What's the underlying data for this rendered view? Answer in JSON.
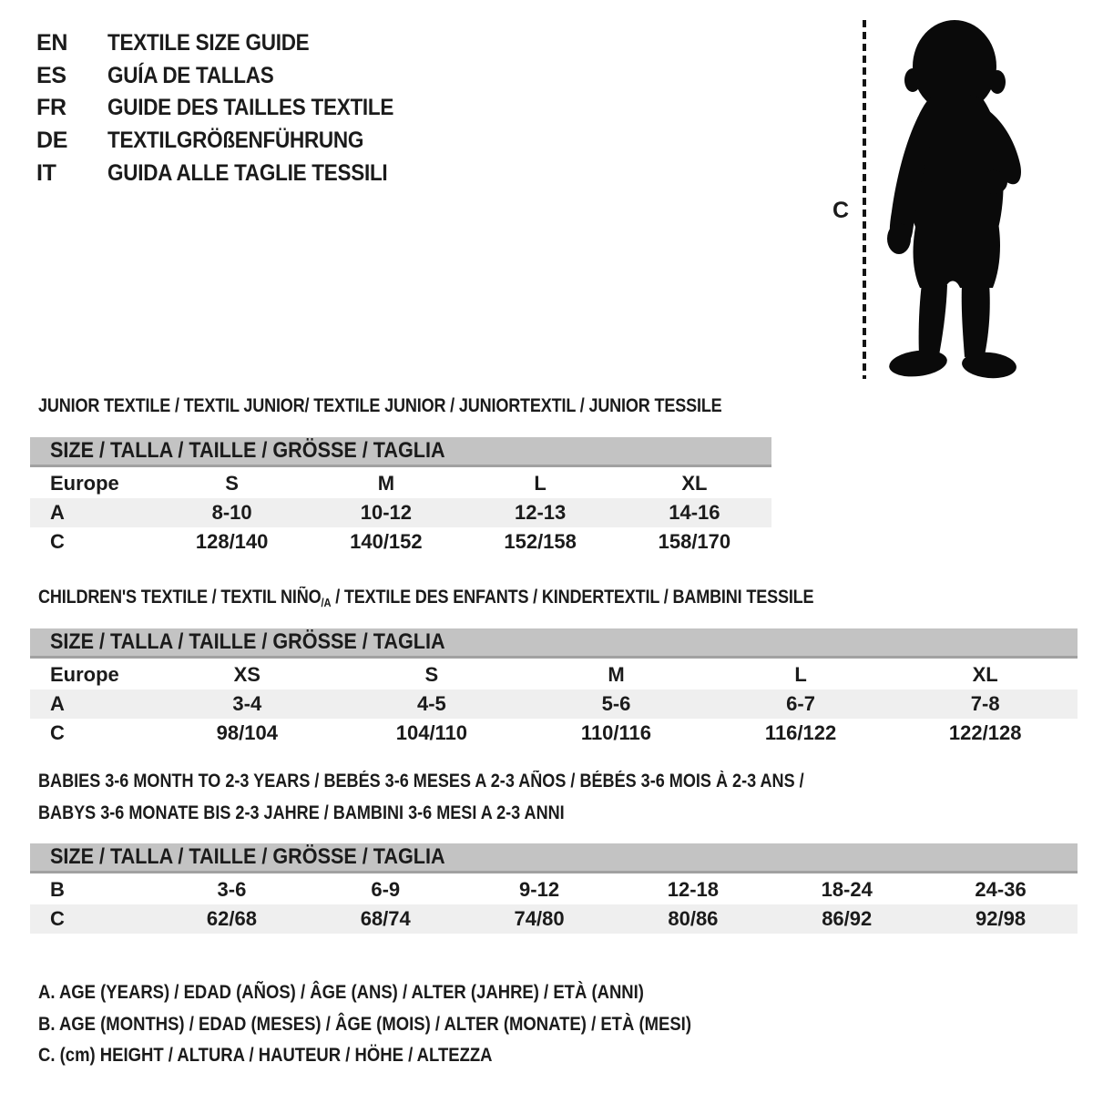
{
  "colors": {
    "table_header_bg": "#c3c3c3",
    "table_header_border": "#a1a1a1",
    "row_shaded_bg": "#efefef",
    "text": "#1b1b1b",
    "silhouette": "#0a0a0a",
    "background": "#ffffff"
  },
  "header": {
    "languages": [
      {
        "code": "EN",
        "title": "TEXTILE SIZE GUIDE"
      },
      {
        "code": "ES",
        "title": "GUÍA DE TALLAS"
      },
      {
        "code": "FR",
        "title": "GUIDE DES TAILLES TEXTILE"
      },
      {
        "code": "DE",
        "title": "TEXTILGRÖßENFÜHRUNG"
      },
      {
        "code": "IT",
        "title": "GUIDA ALLE TAGLIE TESSILI"
      }
    ]
  },
  "figure": {
    "measure_label": "C",
    "illustration": "toddler-silhouette"
  },
  "junior": {
    "title": "JUNIOR TEXTILE / TEXTIL JUNIOR/ TEXTILE JUNIOR / JUNIORTEXTIL / JUNIOR TESSILE",
    "size_header": "SIZE / TALLA / TAILLE / GRÖSSE / TAGLIA",
    "rows": [
      {
        "label": "Europe",
        "cells": [
          "S",
          "M",
          "L",
          "XL"
        ],
        "shaded": false
      },
      {
        "label": "A",
        "cells": [
          "8-10",
          "10-12",
          "12-13",
          "14-16"
        ],
        "shaded": true
      },
      {
        "label": "C",
        "cells": [
          "128/140",
          "140/152",
          "152/158",
          "158/170"
        ],
        "shaded": false
      }
    ]
  },
  "children": {
    "title_prefix": "CHILDREN'S TEXTILE / TEXTIL NIÑO",
    "title_sub": "/A",
    "title_suffix": " / TEXTILE DES ENFANTS / KINDERTEXTIL / BAMBINI TESSILE",
    "size_header": "SIZE / TALLA / TAILLE / GRÖSSE / TAGLIA",
    "rows": [
      {
        "label": "Europe",
        "cells": [
          "XS",
          "S",
          "M",
          "L",
          "XL"
        ],
        "shaded": false
      },
      {
        "label": "A",
        "cells": [
          "3-4",
          "4-5",
          "5-6",
          "6-7",
          "7-8"
        ],
        "shaded": true
      },
      {
        "label": "C",
        "cells": [
          "98/104",
          "104/110",
          "110/116",
          "116/122",
          "122/128"
        ],
        "shaded": false
      }
    ]
  },
  "babies": {
    "title_line1": "BABIES 3-6 MONTH TO 2-3 YEARS / BEBÉS 3-6 MESES A 2-3 AÑOS / BÉBÉS 3-6 MOIS À 2-3 ANS /",
    "title_line2": "BABYS 3-6 MONATE BIS 2-3 JAHRE / BAMBINI 3-6 MESI A 2-3 ANNI",
    "size_header": "SIZE / TALLA / TAILLE / GRÖSSE / TAGLIA",
    "rows": [
      {
        "label": "B",
        "cells": [
          "3-6",
          "6-9",
          "9-12",
          "12-18",
          "18-24",
          "24-36"
        ],
        "shaded": false
      },
      {
        "label": "C",
        "cells": [
          "62/68",
          "68/74",
          "74/80",
          "80/86",
          "86/92",
          "92/98"
        ],
        "shaded": true
      }
    ]
  },
  "footnotes": [
    "A. AGE (YEARS) / EDAD (AÑOS) / ÂGE (ANS) / ALTER (JAHRE) / ETÀ (ANNI)",
    "B. AGE (MONTHS) / EDAD (MESES) / ÂGE (MOIS) / ALTER (MONATE) / ETÀ (MESI)",
    "C. (cm) HEIGHT / ALTURA / HAUTEUR / HÖHE / ALTEZZA"
  ]
}
